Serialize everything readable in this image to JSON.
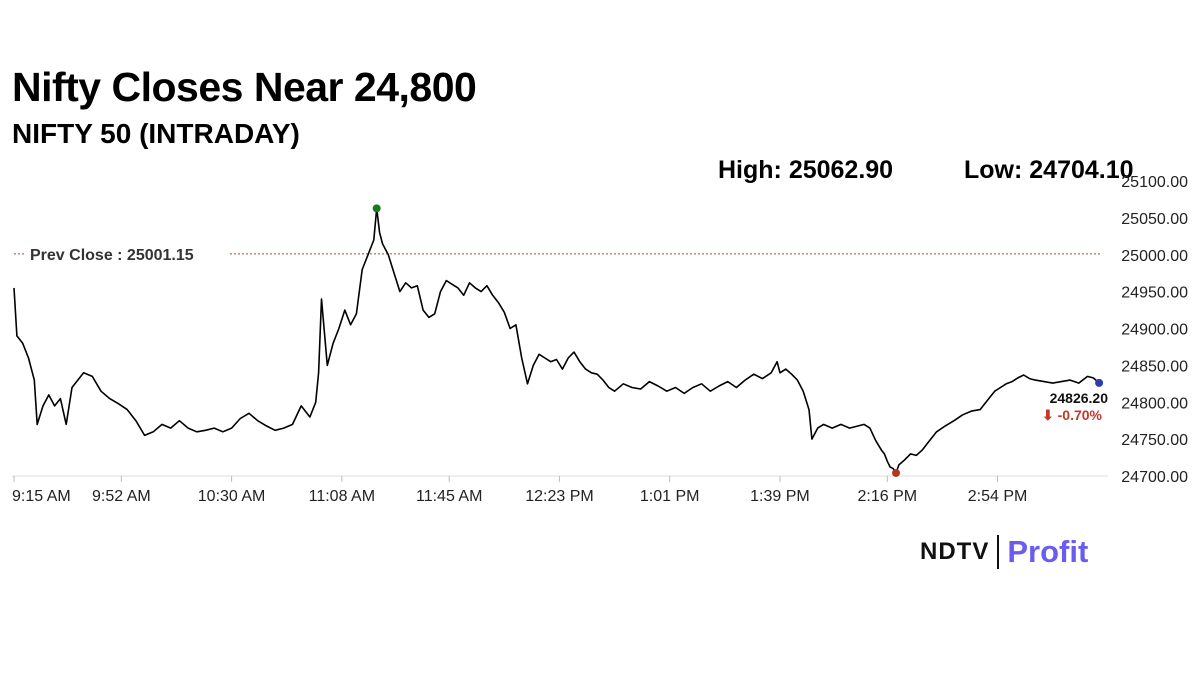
{
  "header": {
    "title": "Nifty Closes Near 24,800",
    "subtitle": "NIFTY 50 (INTRADAY)",
    "high_text": "High: 25062.90",
    "low_text": "Low: 24704.10"
  },
  "logo": {
    "brand": "NDTV",
    "product": "Profit"
  },
  "colors": {
    "line": "#000000",
    "high_dot": "#1a7a1a",
    "low_dot": "#b0381e",
    "last_dot": "#2a3fb3",
    "prev_close_line": "#9c4b3c",
    "change_text": "#c0392b",
    "gridline": "#e6e6e6",
    "brand_profit": "#6b5cf0"
  },
  "chart_data": {
    "type": "line",
    "title": "NIFTY 50 (INTRADAY)",
    "xlabel": "",
    "ylabel": "",
    "ylim": [
      24700,
      25100
    ],
    "xlim": [
      "9:15 AM",
      "3:30 PM"
    ],
    "y_ticks": [
      "25100.00",
      "25050.00",
      "25000.00",
      "24950.00",
      "24900.00",
      "24850.00",
      "24800.00",
      "24750.00",
      "24700.00"
    ],
    "x_ticks": [
      "9:15 AM",
      "9:52 AM",
      "10:30 AM",
      "11:08 AM",
      "11:45 AM",
      "12:23 PM",
      "1:01 PM",
      "1:39 PM",
      "2:16 PM",
      "2:54 PM"
    ],
    "grid": false,
    "prev_close": {
      "label": "Prev Close : 25001.15",
      "value": 25001.15
    },
    "high": {
      "value": 25062.9,
      "time": "11:20 AM"
    },
    "low": {
      "value": 24704.1,
      "time": "2:19 PM"
    },
    "last": {
      "label": "24826.20",
      "value": 24826.2,
      "change": "⬇ -0.70%"
    },
    "series": [
      {
        "points": [
          [
            "9:15 AM",
            24955
          ],
          [
            "9:16 AM",
            24890
          ],
          [
            "9:18 AM",
            24880
          ],
          [
            "9:20 AM",
            24860
          ],
          [
            "9:22 AM",
            24830
          ],
          [
            "9:23 AM",
            24770
          ],
          [
            "9:25 AM",
            24795
          ],
          [
            "9:27 AM",
            24810
          ],
          [
            "9:29 AM",
            24795
          ],
          [
            "9:31 AM",
            24805
          ],
          [
            "9:33 AM",
            24770
          ],
          [
            "9:35 AM",
            24820
          ],
          [
            "9:37 AM",
            24830
          ],
          [
            "9:39 AM",
            24840
          ],
          [
            "9:42 AM",
            24835
          ],
          [
            "9:45 AM",
            24815
          ],
          [
            "9:48 AM",
            24805
          ],
          [
            "9:51 AM",
            24798
          ],
          [
            "9:54 AM",
            24790
          ],
          [
            "9:57 AM",
            24775
          ],
          [
            "10:00 AM",
            24755
          ],
          [
            "10:03 AM",
            24760
          ],
          [
            "10:06 AM",
            24770
          ],
          [
            "10:09 AM",
            24765
          ],
          [
            "10:12 AM",
            24775
          ],
          [
            "10:15 AM",
            24765
          ],
          [
            "10:18 AM",
            24760
          ],
          [
            "10:21 AM",
            24762
          ],
          [
            "10:24 AM",
            24765
          ],
          [
            "10:27 AM",
            24760
          ],
          [
            "10:30 AM",
            24765
          ],
          [
            "10:33 AM",
            24778
          ],
          [
            "10:36 AM",
            24785
          ],
          [
            "10:39 AM",
            24775
          ],
          [
            "10:42 AM",
            24768
          ],
          [
            "10:45 AM",
            24762
          ],
          [
            "10:48 AM",
            24765
          ],
          [
            "10:51 AM",
            24770
          ],
          [
            "10:54 AM",
            24795
          ],
          [
            "10:57 AM",
            24780
          ],
          [
            "10:59 AM",
            24800
          ],
          [
            "11:00 AM",
            24840
          ],
          [
            "11:01 AM",
            24940
          ],
          [
            "11:03 AM",
            24850
          ],
          [
            "11:05 AM",
            24880
          ],
          [
            "11:07 AM",
            24900
          ],
          [
            "11:09 AM",
            24925
          ],
          [
            "11:11 AM",
            24905
          ],
          [
            "11:13 AM",
            24920
          ],
          [
            "11:15 AM",
            24980
          ],
          [
            "11:17 AM",
            25000
          ],
          [
            "11:19 AM",
            25020
          ],
          [
            "11:20 AM",
            25062.9
          ],
          [
            "11:21 AM",
            25030
          ],
          [
            "11:22 AM",
            25015
          ],
          [
            "11:24 AM",
            25000
          ],
          [
            "11:26 AM",
            24975
          ],
          [
            "11:28 AM",
            24950
          ],
          [
            "11:30 AM",
            24962
          ],
          [
            "11:32 AM",
            24955
          ],
          [
            "11:34 AM",
            24958
          ],
          [
            "11:36 AM",
            24925
          ],
          [
            "11:38 AM",
            24915
          ],
          [
            "11:40 AM",
            24920
          ],
          [
            "11:42 AM",
            24950
          ],
          [
            "11:44 AM",
            24965
          ],
          [
            "11:46 AM",
            24960
          ],
          [
            "11:48 AM",
            24955
          ],
          [
            "11:50 AM",
            24945
          ],
          [
            "11:52 AM",
            24962
          ],
          [
            "11:54 AM",
            24955
          ],
          [
            "11:56 AM",
            24950
          ],
          [
            "11:58 AM",
            24958
          ],
          [
            "12:00 PM",
            24945
          ],
          [
            "12:02 PM",
            24935
          ],
          [
            "12:04 PM",
            24922
          ],
          [
            "12:06 PM",
            24900
          ],
          [
            "12:08 PM",
            24905
          ],
          [
            "12:10 PM",
            24860
          ],
          [
            "12:12 PM",
            24825
          ],
          [
            "12:14 PM",
            24850
          ],
          [
            "12:16 PM",
            24865
          ],
          [
            "12:18 PM",
            24860
          ],
          [
            "12:20 PM",
            24855
          ],
          [
            "12:22 PM",
            24858
          ],
          [
            "12:24 PM",
            24845
          ],
          [
            "12:26 PM",
            24860
          ],
          [
            "12:28 PM",
            24868
          ],
          [
            "12:30 PM",
            24855
          ],
          [
            "12:32 PM",
            24845
          ],
          [
            "12:34 PM",
            24840
          ],
          [
            "12:36 PM",
            24838
          ],
          [
            "12:38 PM",
            24830
          ],
          [
            "12:40 PM",
            24820
          ],
          [
            "12:42 PM",
            24815
          ],
          [
            "12:45 PM",
            24825
          ],
          [
            "12:48 PM",
            24820
          ],
          [
            "12:51 PM",
            24818
          ],
          [
            "12:54 PM",
            24828
          ],
          [
            "12:57 PM",
            24822
          ],
          [
            "1:00 PM",
            24815
          ],
          [
            "1:03 PM",
            24820
          ],
          [
            "1:06 PM",
            24812
          ],
          [
            "1:09 PM",
            24820
          ],
          [
            "1:12 PM",
            24825
          ],
          [
            "1:15 PM",
            24815
          ],
          [
            "1:18 PM",
            24822
          ],
          [
            "1:21 PM",
            24828
          ],
          [
            "1:24 PM",
            24820
          ],
          [
            "1:27 PM",
            24830
          ],
          [
            "1:30 PM",
            24838
          ],
          [
            "1:33 PM",
            24832
          ],
          [
            "1:36 PM",
            24840
          ],
          [
            "1:38 PM",
            24855
          ],
          [
            "1:39 PM",
            24840
          ],
          [
            "1:41 PM",
            24845
          ],
          [
            "1:43 PM",
            24838
          ],
          [
            "1:45 PM",
            24830
          ],
          [
            "1:47 PM",
            24815
          ],
          [
            "1:49 PM",
            24790
          ],
          [
            "1:50 PM",
            24750
          ],
          [
            "1:52 PM",
            24765
          ],
          [
            "1:54 PM",
            24770
          ],
          [
            "1:57 PM",
            24765
          ],
          [
            "2:00 PM",
            24770
          ],
          [
            "2:03 PM",
            24765
          ],
          [
            "2:06 PM",
            24768
          ],
          [
            "2:08 PM",
            24770
          ],
          [
            "2:10 PM",
            24765
          ],
          [
            "2:12 PM",
            24748
          ],
          [
            "2:14 PM",
            24735
          ],
          [
            "2:15 PM",
            24730
          ],
          [
            "2:16 PM",
            24720
          ],
          [
            "2:17 PM",
            24712
          ],
          [
            "2:18 PM",
            24710
          ],
          [
            "2:19 PM",
            24704.1
          ],
          [
            "2:20 PM",
            24715
          ],
          [
            "2:22 PM",
            24722
          ],
          [
            "2:24 PM",
            24730
          ],
          [
            "2:26 PM",
            24728
          ],
          [
            "2:28 PM",
            24735
          ],
          [
            "2:30 PM",
            24745
          ],
          [
            "2:33 PM",
            24760
          ],
          [
            "2:36 PM",
            24768
          ],
          [
            "2:39 PM",
            24775
          ],
          [
            "2:42 PM",
            24783
          ],
          [
            "2:45 PM",
            24788
          ],
          [
            "2:48 PM",
            24790
          ],
          [
            "2:51 PM",
            24805
          ],
          [
            "2:53 PM",
            24815
          ],
          [
            "2:55 PM",
            24820
          ],
          [
            "2:57 PM",
            24825
          ],
          [
            "2:59 PM",
            24828
          ],
          [
            "3:01 PM",
            24833
          ],
          [
            "3:03 PM",
            24837
          ],
          [
            "3:05 PM",
            24832
          ],
          [
            "3:07 PM",
            24830
          ],
          [
            "3:10 PM",
            24828
          ],
          [
            "3:13 PM",
            24826
          ],
          [
            "3:16 PM",
            24828
          ],
          [
            "3:19 PM",
            24830
          ],
          [
            "3:22 PM",
            24826
          ],
          [
            "3:25 PM",
            24835
          ],
          [
            "3:27 PM",
            24833
          ],
          [
            "3:29 PM",
            24826.2
          ]
        ]
      }
    ]
  }
}
